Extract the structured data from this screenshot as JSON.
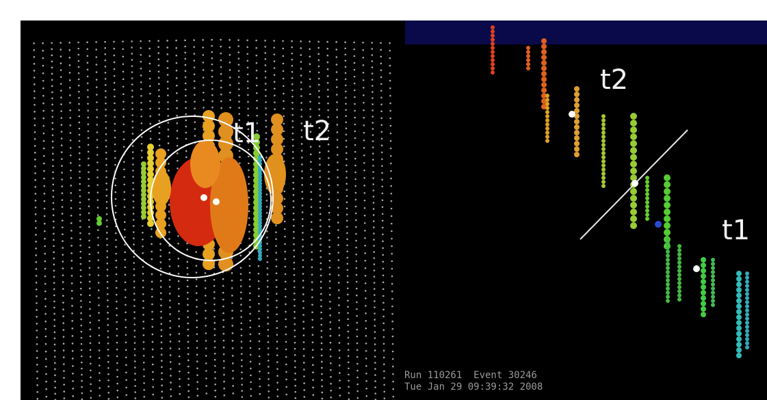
{
  "left_panel": {
    "labels": [
      "t1",
      "t2"
    ]
  },
  "right_panel": {
    "labels": [
      "t2",
      "t1"
    ],
    "info": [
      "Run 110261  Event 30246",
      "Tue Jan 29 09:39:32 2008"
    ]
  }
}
